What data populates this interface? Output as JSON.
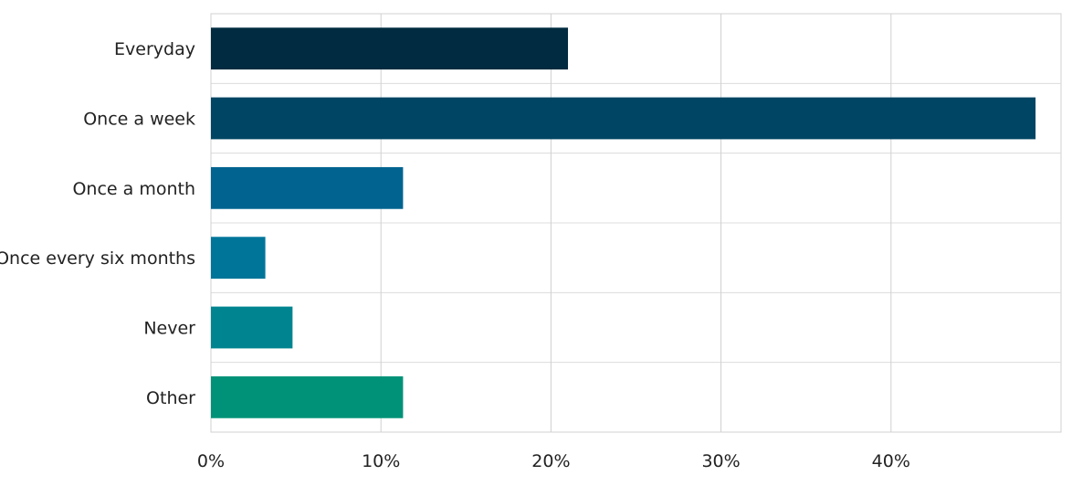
{
  "chart_data": {
    "type": "bar",
    "orientation": "horizontal",
    "categories": [
      "Everyday",
      "Once a week",
      "Once a month",
      "Once every six months",
      "Never",
      "Other"
    ],
    "values": [
      21.0,
      48.5,
      11.3,
      3.2,
      4.8,
      11.3
    ],
    "value_unit": "%",
    "xlim": [
      0,
      50
    ],
    "xticks": [
      0,
      10,
      20,
      30,
      40
    ],
    "xtick_labels": [
      "0%",
      "10%",
      "20%",
      "30%",
      "40%"
    ],
    "title": "",
    "xlabel": "",
    "ylabel": "",
    "grid": true,
    "legend": "none",
    "bar_colors": [
      "#002b40",
      "#004563",
      "#006390",
      "#00759a",
      "#008590",
      "#009278"
    ]
  }
}
